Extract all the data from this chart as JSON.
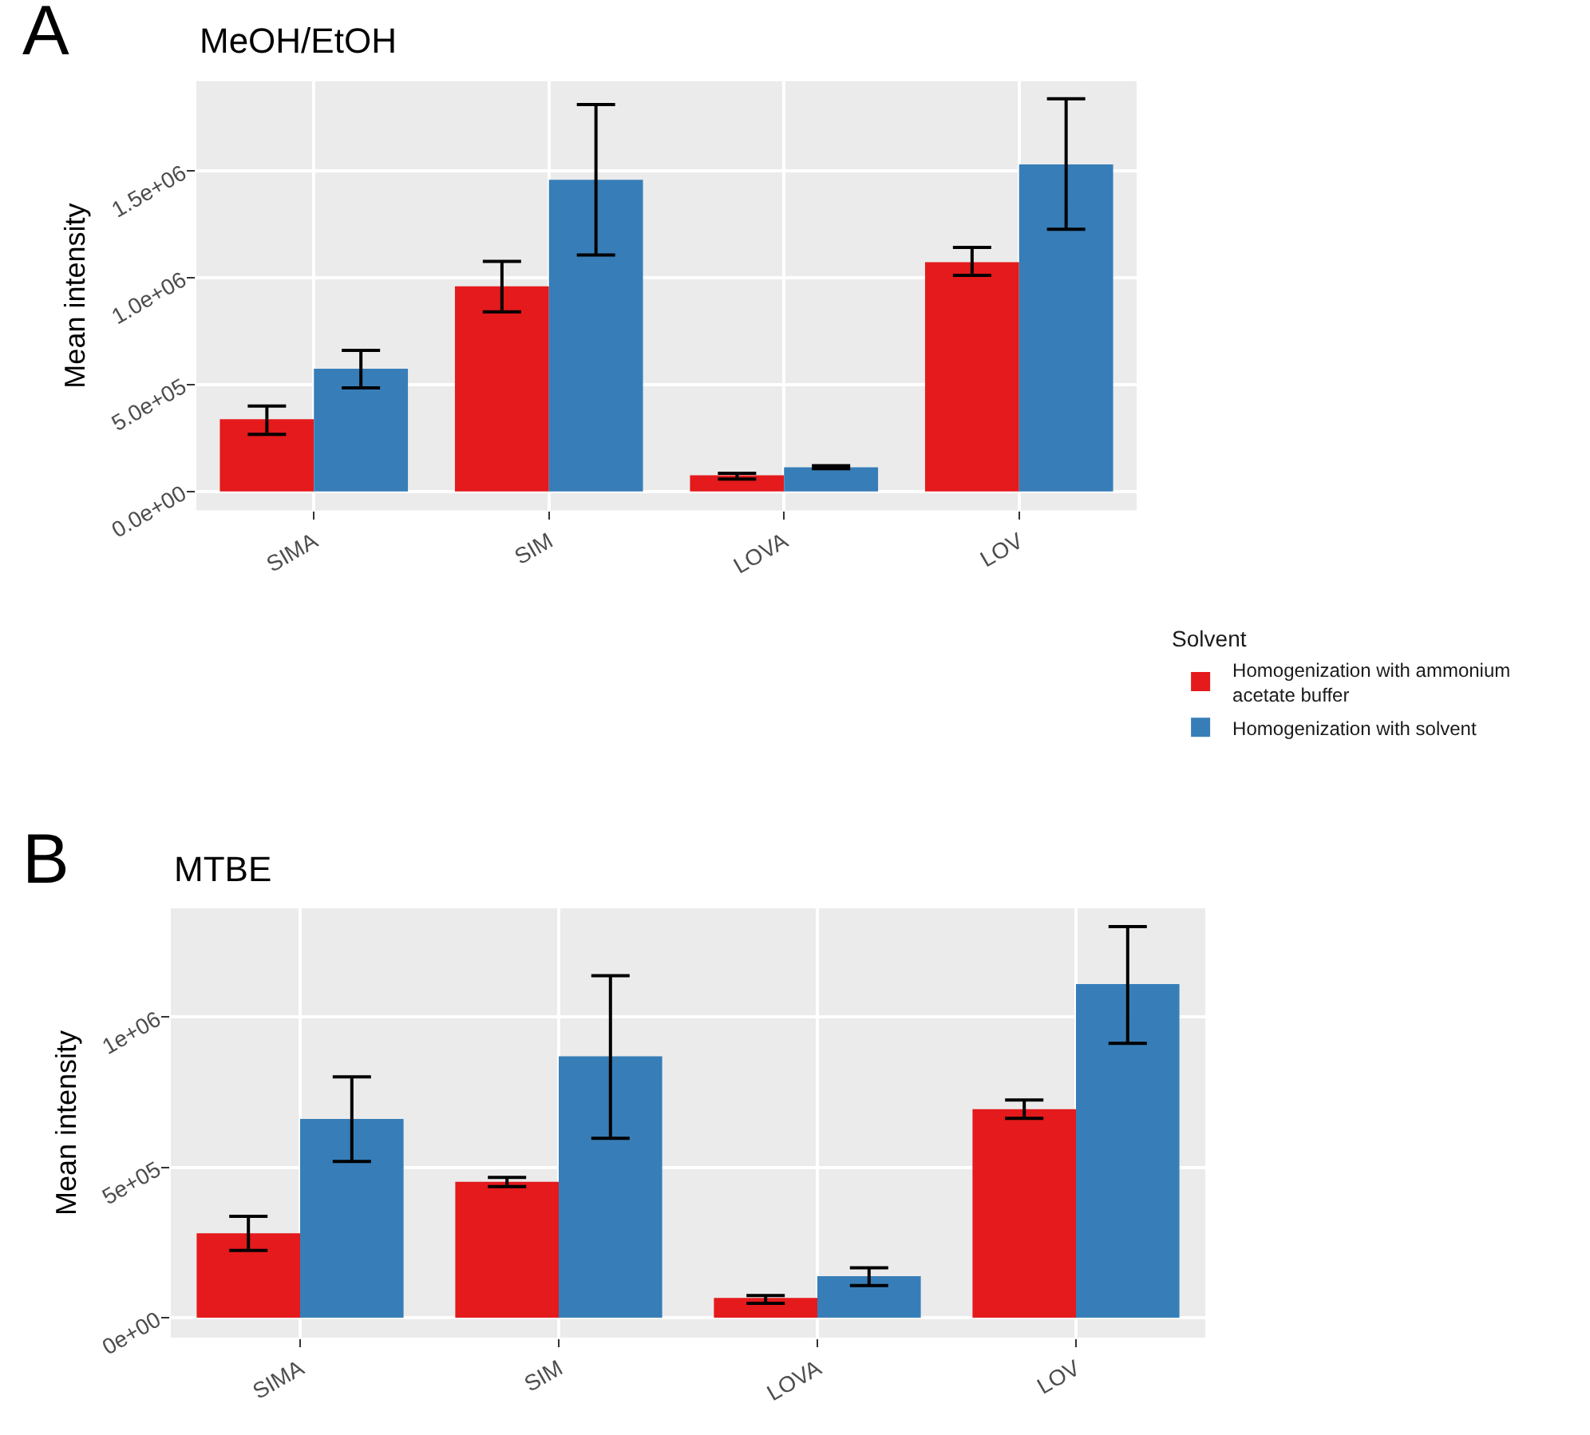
{
  "chart_data": [
    {
      "type": "bar",
      "title": "MeOH/EtOH",
      "ylabel": "Mean intensity",
      "annotations": [
        "A"
      ],
      "legend_title": "Solvent",
      "legend": "right",
      "grid": true,
      "categories": [
        "SIMA",
        "SIM",
        "LOVA",
        "LOV"
      ],
      "ylim": [
        -89000,
        1921000
      ],
      "yticks": [
        {
          "value": 0,
          "label": "0.0e+00"
        },
        {
          "value": 500000,
          "label": "5.0e+05"
        },
        {
          "value": 1000000,
          "label": "1.0e+06"
        },
        {
          "value": 1500000,
          "label": "1.5e+06"
        }
      ],
      "series": [
        {
          "name": "Homogenization with ammonium acetate buffer",
          "color": "#e41a1c",
          "values": [
            338000,
            960000,
            75000,
            1073000
          ],
          "errors": [
            [
              267000,
              400000
            ],
            [
              841000,
              1077000
            ],
            [
              58000,
              85000
            ],
            [
              1012000,
              1142000
            ]
          ]
        },
        {
          "name": "Homogenization with solvent",
          "color": "#377eb8",
          "values": [
            574000,
            1459000,
            113000,
            1531000
          ],
          "errors": [
            [
              485000,
              660000
            ],
            [
              1107000,
              1811000
            ],
            [
              106000,
              120000
            ],
            [
              1227000,
              1839000
            ]
          ]
        }
      ]
    },
    {
      "type": "bar",
      "title": "MTBE",
      "ylabel": "Mean intensity",
      "annotations": [
        "B"
      ],
      "grid": true,
      "categories": [
        "SIMA",
        "SIM",
        "LOVA",
        "LOV"
      ],
      "ylim": [
        -66000,
        1362000
      ],
      "yticks": [
        {
          "value": 0,
          "label": "0e+00"
        },
        {
          "value": 500000,
          "label": "5e+05"
        },
        {
          "value": 1000000,
          "label": "1e+06"
        }
      ],
      "series": [
        {
          "color": "#e41a1c",
          "values": [
            281000,
            452000,
            66000,
            694000
          ],
          "errors": [
            [
              224000,
              337000
            ],
            [
              436000,
              467000
            ],
            [
              48000,
              74000
            ],
            [
              663000,
              724000
            ]
          ]
        },
        {
          "color": "#377eb8",
          "values": [
            661000,
            870000,
            138000,
            1110000
          ],
          "errors": [
            [
              520000,
              801000
            ],
            [
              597000,
              1138000
            ],
            [
              107000,
              166000
            ],
            [
              913000,
              1301000
            ]
          ]
        }
      ]
    }
  ]
}
